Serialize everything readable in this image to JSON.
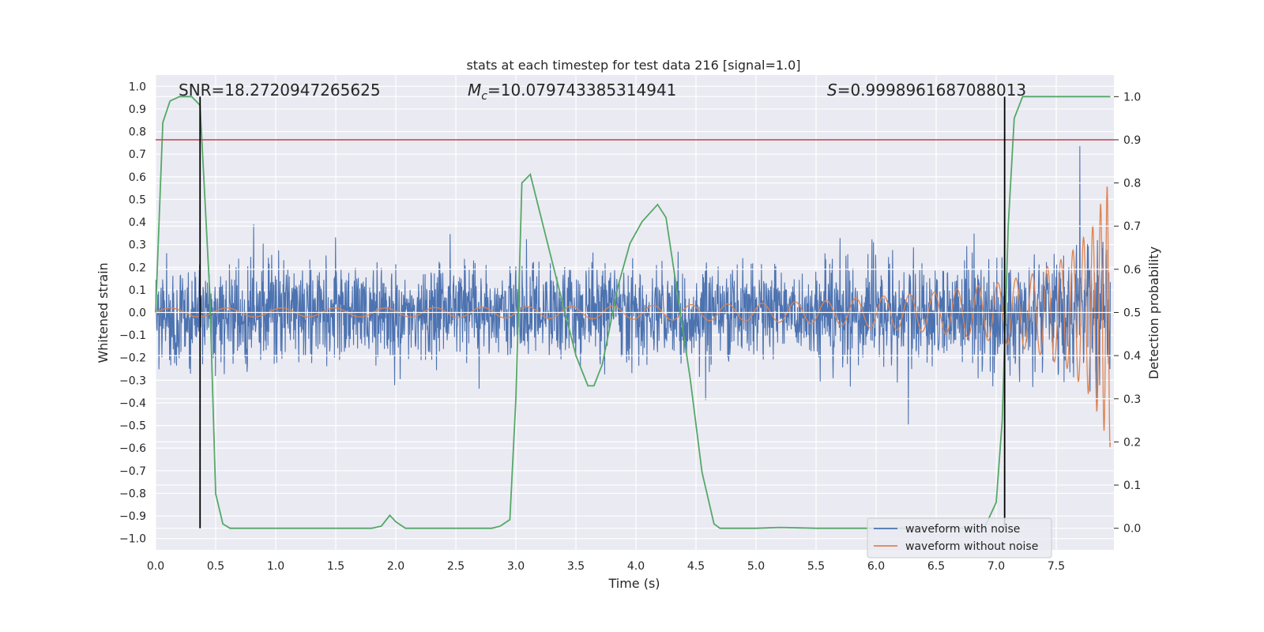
{
  "chart_data": {
    "type": "line",
    "title": "stats at each timestep for test data 216 [signal=1.0]",
    "xlabel": "Time (s)",
    "ylabel": "Whitened strain",
    "y2label": "Detection probability",
    "xlim": [
      0.0,
      7.98
    ],
    "ylim": [
      -1.05,
      1.05
    ],
    "y2lim": [
      -0.05,
      1.05
    ],
    "x_ticks": [
      "0.0",
      "0.5",
      "1.0",
      "1.5",
      "2.0",
      "2.5",
      "3.0",
      "3.5",
      "4.0",
      "4.5",
      "5.0",
      "5.5",
      "6.0",
      "6.5",
      "7.0",
      "7.5"
    ],
    "y_ticks": [
      "1.0",
      "0.9",
      "0.8",
      "0.7",
      "0.6",
      "0.5",
      "0.4",
      "0.3",
      "0.2",
      "0.1",
      "0.0",
      "−0.1",
      "−0.2",
      "−0.3",
      "−0.4",
      "−0.5",
      "−0.6",
      "−0.7",
      "−0.8",
      "−0.9",
      "−1.0"
    ],
    "y2_ticks": [
      "1.0",
      "0.9",
      "0.8",
      "0.7",
      "0.6",
      "0.5",
      "0.4",
      "0.3",
      "0.2",
      "0.1",
      "0.0"
    ],
    "annotations": {
      "snr": "SNR=18.2720947265625",
      "mc_symbol": "M",
      "mc_sub": "c",
      "mc_value": "=10.079743385314941",
      "s_symbol": "S",
      "s_value": "=0.9998961687088013"
    },
    "threshold": {
      "axis": "y2",
      "value": 0.9,
      "color": "#c44e52"
    },
    "vlines": [
      0.37,
      7.07
    ],
    "series": [
      {
        "name": "waveform with noise",
        "axis": "y",
        "color": "#4c72b0",
        "envelope_t": [
          0.0,
          0.5,
          1.0,
          1.5,
          2.0,
          2.5,
          3.0,
          3.5,
          4.0,
          4.5,
          5.0,
          5.5,
          6.0,
          6.5,
          7.0,
          7.5,
          7.9
        ],
        "envelope_amp": [
          0.42,
          0.42,
          0.42,
          0.42,
          0.41,
          0.42,
          0.42,
          0.43,
          0.43,
          0.43,
          0.43,
          0.44,
          0.45,
          0.47,
          0.5,
          0.58,
          0.78
        ]
      },
      {
        "name": "waveform without noise",
        "axis": "y",
        "color": "#dd8452",
        "envelope_t": [
          0.0,
          1.0,
          2.0,
          3.0,
          4.0,
          4.5,
          5.0,
          5.5,
          6.0,
          6.5,
          7.0,
          7.3,
          7.6,
          7.8,
          7.95
        ],
        "envelope_amp": [
          0.02,
          0.02,
          0.02,
          0.025,
          0.03,
          0.035,
          0.04,
          0.05,
          0.07,
          0.09,
          0.13,
          0.17,
          0.25,
          0.38,
          0.6
        ]
      },
      {
        "name": "detection probability",
        "axis": "y2",
        "color": "#55a868",
        "x": [
          0.0,
          0.06,
          0.12,
          0.2,
          0.3,
          0.37,
          0.45,
          0.5,
          0.56,
          0.62,
          1.0,
          1.8,
          1.88,
          1.95,
          2.0,
          2.08,
          2.15,
          2.5,
          2.8,
          2.87,
          2.95,
          3.0,
          3.05,
          3.12,
          3.3,
          3.5,
          3.6,
          3.65,
          3.72,
          3.85,
          3.95,
          4.05,
          4.18,
          4.25,
          4.45,
          4.55,
          4.65,
          4.7,
          5.0,
          5.2,
          5.5,
          6.0,
          6.5,
          6.9,
          7.0,
          7.05,
          7.1,
          7.15,
          7.22,
          7.95
        ],
        "y": [
          0.5,
          0.94,
          0.99,
          1.0,
          1.0,
          0.98,
          0.55,
          0.08,
          0.01,
          0.0,
          0.0,
          0.0,
          0.005,
          0.03,
          0.015,
          0.0,
          0.0,
          0.0,
          0.0,
          0.005,
          0.02,
          0.3,
          0.8,
          0.82,
          0.62,
          0.4,
          0.33,
          0.33,
          0.38,
          0.56,
          0.66,
          0.71,
          0.75,
          0.72,
          0.35,
          0.13,
          0.01,
          0.0,
          0.0,
          0.002,
          0.0,
          0.0,
          0.0,
          0.0,
          0.06,
          0.25,
          0.7,
          0.95,
          1.0,
          1.0
        ]
      }
    ],
    "legend": {
      "placement": "lower-right",
      "entries": [
        "waveform with noise",
        "waveform without noise"
      ]
    },
    "colors": {
      "background": "#eaeaf2",
      "grid": "#ffffff",
      "noise": "#4c72b0",
      "clean": "#dd8452",
      "prob": "#55a868",
      "threshold": "#c44e52",
      "vline": "#000000"
    }
  }
}
